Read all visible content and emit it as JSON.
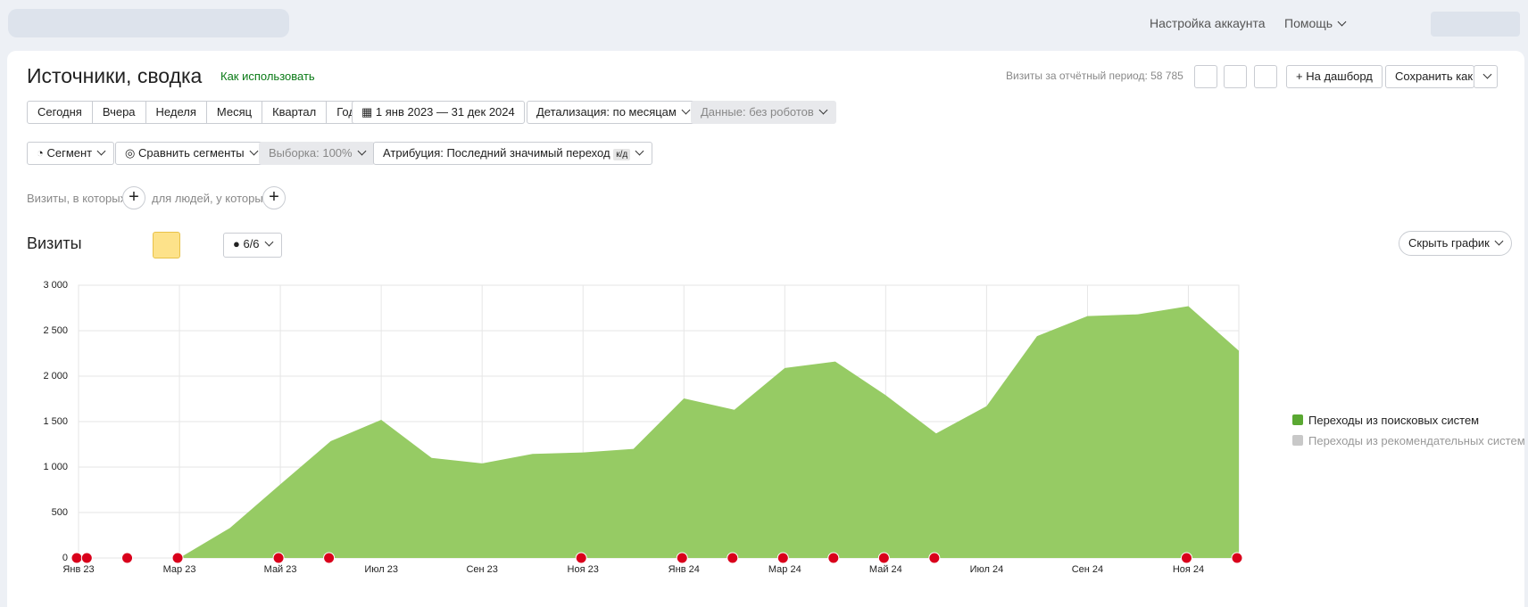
{
  "header": {
    "nav": [
      "Настройка аккаунта",
      "Помощь"
    ]
  },
  "report": {
    "title": "Источники, сводка",
    "help_link": "Как использовать",
    "visits_total": "Визиты за отчётный период: 58 785",
    "dashboard_button": "На дашборд",
    "save_button": "Сохранить как"
  },
  "periods": [
    "Сегодня",
    "Вчера",
    "Неделя",
    "Месяц",
    "Квартал",
    "Год"
  ],
  "date_range": "1 янв 2023 — 31 дек 2024",
  "detail": "Детализация: по месяцам",
  "data_filter": "Данные: без роботов",
  "segment": "Сегмент",
  "compare": "Сравнить сегменты",
  "sample": "Выборка: 100%",
  "attribution": "Атрибуция: Последний значимый переход",
  "attribution_badge": "к/д",
  "conditions": [
    "Визиты, в которых",
    "для людей, у которых"
  ],
  "chart_header": {
    "title": "Визиты",
    "annotations": "6/6",
    "hide": "Скрыть график"
  },
  "chart_data": {
    "type": "area",
    "categories": [
      "Янв 23",
      null,
      "Мар 23",
      null,
      "Май 23",
      null,
      "Июл 23",
      null,
      "Сен 23",
      null,
      "Ноя 23",
      null,
      "Янв 24",
      null,
      "Мар 24",
      null,
      "Май 24",
      null,
      "Июл 24",
      null,
      "Сен 24",
      null,
      "Ноя 24",
      null
    ],
    "series": [
      {
        "name": "Переходы из поисковых систем",
        "color": "#96cb64",
        "values": [
          0,
          0,
          0,
          330,
          810,
          1285,
          1520,
          1100,
          1040,
          1145,
          1160,
          1200,
          1755,
          1630,
          2090,
          2160,
          1790,
          1370,
          1670,
          2440,
          2660,
          2680,
          2770,
          2280
        ]
      }
    ],
    "inactive_series_name": "Переходы из рекомендательных систем",
    "ylim": [
      0,
      3000
    ],
    "yticks": [
      0,
      500,
      {
        "value": 1000,
        "label": "1 000"
      },
      {
        "value": 1500,
        "label": "1 500"
      },
      {
        "value": 2000,
        "label": "2 000"
      },
      {
        "value": 2500,
        "label": "2 500"
      },
      {
        "value": 3000,
        "label": "3 000"
      }
    ],
    "grid": true
  }
}
